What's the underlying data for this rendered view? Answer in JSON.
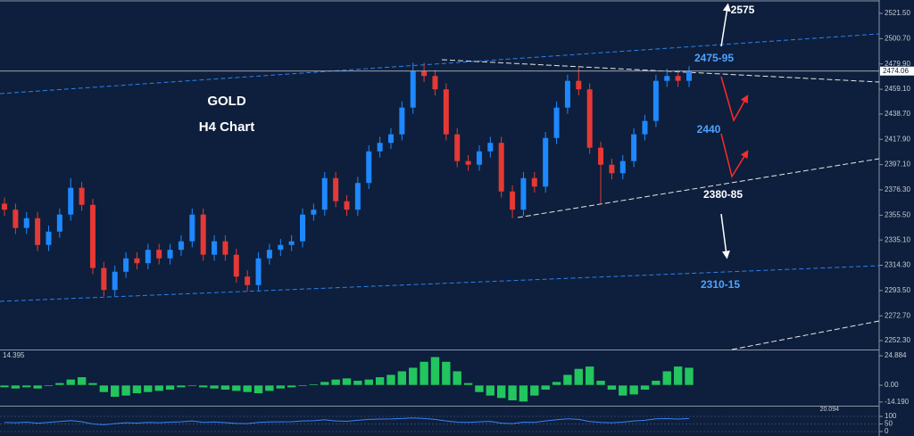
{
  "chart_data": [
    {
      "type": "candlestick",
      "annotations": [
        "GOLD",
        "H4 Chart",
        "2575",
        "2475-95",
        "2440",
        "2380-85",
        "2310-15"
      ],
      "open": [
        2365,
        2360,
        2345,
        2353,
        2331,
        2342,
        2356,
        2378,
        2364,
        2312,
        2294,
        2309,
        2320,
        2316,
        2327,
        2320,
        2327,
        2334,
        2356,
        2323,
        2334,
        2323,
        2305,
        2298,
        2320,
        2327,
        2331,
        2334,
        2356,
        2360,
        2386,
        2367,
        2360,
        2382,
        2408,
        2415,
        2422,
        2444,
        2474,
        2470,
        2459,
        2422,
        2400,
        2397,
        2408,
        2415,
        2375,
        2360,
        2386,
        2379,
        2419,
        2444,
        2466,
        2459,
        2411,
        2397,
        2390,
        2400,
        2422,
        2433,
        2466,
        2470,
        2466
      ],
      "high": [
        2370,
        2365,
        2358,
        2358,
        2347,
        2361,
        2386,
        2383,
        2369,
        2317,
        2314,
        2325,
        2325,
        2332,
        2332,
        2332,
        2339,
        2361,
        2361,
        2339,
        2339,
        2328,
        2310,
        2325,
        2332,
        2336,
        2339,
        2361,
        2365,
        2391,
        2391,
        2372,
        2387,
        2413,
        2420,
        2427,
        2449,
        2481,
        2481,
        2475,
        2464,
        2427,
        2405,
        2413,
        2420,
        2420,
        2380,
        2391,
        2391,
        2424,
        2449,
        2471,
        2477,
        2464,
        2416,
        2402,
        2405,
        2427,
        2438,
        2471,
        2476,
        2475,
        2478
      ],
      "low": [
        2355,
        2340,
        2340,
        2326,
        2326,
        2337,
        2351,
        2359,
        2307,
        2289,
        2289,
        2304,
        2311,
        2311,
        2315,
        2315,
        2322,
        2329,
        2318,
        2318,
        2318,
        2300,
        2293,
        2293,
        2315,
        2322,
        2326,
        2329,
        2351,
        2355,
        2362,
        2355,
        2355,
        2377,
        2403,
        2410,
        2417,
        2439,
        2465,
        2454,
        2417,
        2395,
        2392,
        2392,
        2403,
        2370,
        2353,
        2355,
        2374,
        2374,
        2414,
        2439,
        2454,
        2406,
        2365,
        2385,
        2385,
        2395,
        2417,
        2428,
        2461,
        2461,
        2461
      ],
      "close": [
        2360,
        2345,
        2353,
        2331,
        2342,
        2356,
        2378,
        2364,
        2312,
        2294,
        2309,
        2320,
        2316,
        2327,
        2320,
        2327,
        2334,
        2356,
        2323,
        2334,
        2323,
        2305,
        2298,
        2320,
        2327,
        2331,
        2334,
        2356,
        2360,
        2386,
        2367,
        2360,
        2382,
        2408,
        2415,
        2422,
        2444,
        2474,
        2470,
        2459,
        2422,
        2400,
        2397,
        2408,
        2415,
        2375,
        2360,
        2386,
        2379,
        2419,
        2444,
        2466,
        2459,
        2411,
        2397,
        2390,
        2400,
        2422,
        2433,
        2466,
        2470,
        2466,
        2474
      ],
      "up_color": "#1e88ff",
      "down_color": "#e53935",
      "current_price": 2474.06,
      "ylim": [
        2245,
        2532.5
      ],
      "yticks": [
        {
          "value": 2521.5,
          "label": "2521.50"
        },
        {
          "value": 2500.7,
          "label": "2500.70"
        },
        {
          "value": 2479.9,
          "label": "2479.90"
        },
        {
          "value": 2459.1,
          "label": "2459.10"
        },
        {
          "value": 2438.7,
          "label": "2438.70"
        },
        {
          "value": 2417.9,
          "label": "2417.90"
        },
        {
          "value": 2397.1,
          "label": "2397.10"
        },
        {
          "value": 2376.3,
          "label": "2376.30"
        },
        {
          "value": 2355.5,
          "label": "2355.50"
        },
        {
          "value": 2335.1,
          "label": "2335.10"
        },
        {
          "value": 2314.3,
          "label": "2314.30"
        },
        {
          "value": 2293.5,
          "label": "2293.50"
        },
        {
          "value": 2272.7,
          "label": "2272.70"
        },
        {
          "value": 2252.3,
          "label": "2252.30"
        }
      ]
    },
    {
      "type": "bar",
      "indicator_label": "14.395",
      "values": [
        -2,
        -3,
        -2,
        -3,
        -1,
        2,
        5,
        7,
        2,
        -6,
        -10,
        -9,
        -7,
        -6,
        -5,
        -4,
        -2,
        -1,
        -2,
        -3,
        -4,
        -5,
        -6,
        -7,
        -5,
        -3,
        -2,
        -1,
        1,
        3,
        5,
        6,
        4,
        5,
        7,
        9,
        12,
        15,
        20,
        24,
        20,
        12,
        2,
        -6,
        -9,
        -11,
        -13,
        -14,
        -9,
        -4,
        3,
        9,
        14,
        16,
        4,
        -4,
        -9,
        -8,
        -4,
        4,
        12,
        16,
        15
      ],
      "color": "#22c55e",
      "ylim": [
        -17.3,
        29.4
      ],
      "yticks": [
        24.884,
        {
          "value": 0,
          "label": "0.00"
        },
        {
          "value": -14.19,
          "label": "-14.190"
        }
      ]
    },
    {
      "type": "line",
      "indicator_label": "20.094",
      "values": [
        60,
        58,
        62,
        55,
        60,
        66,
        72,
        65,
        50,
        45,
        52,
        58,
        56,
        60,
        58,
        62,
        64,
        70,
        60,
        63,
        59,
        54,
        52,
        60,
        63,
        64,
        65,
        70,
        71,
        78,
        70,
        68,
        74,
        80,
        82,
        83,
        86,
        90,
        86,
        80,
        70,
        62,
        60,
        64,
        67,
        55,
        52,
        62,
        60,
        70,
        78,
        84,
        80,
        66,
        60,
        58,
        62,
        70,
        74,
        84,
        85,
        82,
        86
      ],
      "color": "#3b82f6",
      "ylim": [
        -29.4,
        164.7
      ],
      "yticks": [
        100,
        50,
        0
      ]
    }
  ]
}
